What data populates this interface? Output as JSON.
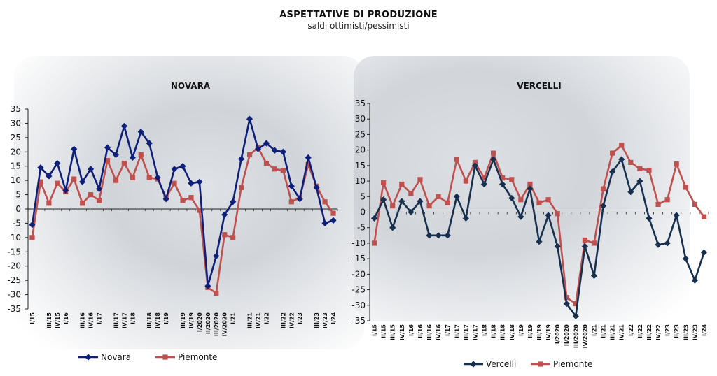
{
  "header": {
    "title": "ASPETTATIVE DI PRODUZIONE",
    "subtitle": "saldi ottimisti/pessimisti"
  },
  "chart_data": [
    {
      "type": "line",
      "title": "NOVARA",
      "ylim": [
        -35,
        35
      ],
      "yticks": [
        35,
        30,
        25,
        20,
        15,
        10,
        5,
        0,
        -5,
        -10,
        -15,
        -20,
        -25,
        -30,
        -35
      ],
      "categories": [
        "I/15",
        "II/15",
        "III/15",
        "IV/15",
        "I/16",
        "II/16",
        "III/16",
        "IV/16",
        "I/17",
        "II/17",
        "III/17",
        "IV/17",
        "I/18",
        "II/18",
        "III/18",
        "IV/18",
        "I/19",
        "II/19",
        "III/19",
        "IV/19",
        "I/2020",
        "II/2020",
        "III/2020",
        "IV/2020",
        "I/21",
        "II/21",
        "III/21",
        "IV/21",
        "I/22",
        "II/22",
        "III/22",
        "IV/22",
        "I/23",
        "II/23",
        "III/23",
        "IV/23",
        "I/24"
      ],
      "x_labels": [
        "I/15",
        "III/15",
        "IV/15",
        "I/16",
        "III/16",
        "IV/16",
        "I/17",
        "III/17",
        "IV/17",
        "I/18",
        "III/18",
        "IV/18",
        "I/19",
        "III/19",
        "IV/19",
        "I/2020",
        "II/2020",
        "III/2020",
        "IV/2020",
        "I/21",
        "III/21",
        "IV/21",
        "I/22",
        "III/22",
        "IV/22",
        "I/23",
        "III/23",
        "IV/23",
        "I/24"
      ],
      "legend_position": "bottom",
      "series": [
        {
          "name": "Novara",
          "color": "#0d1f7a",
          "marker": "diamond",
          "values": [
            -5.5,
            14.5,
            11.5,
            16,
            6.5,
            21,
            9.5,
            14,
            7,
            21.5,
            19,
            29,
            18,
            27,
            23,
            11,
            3.5,
            14,
            15,
            9,
            9.5,
            -27,
            -16.5,
            -2,
            2.5,
            17.5,
            31.5,
            21,
            23,
            20.5,
            20,
            8,
            3.5,
            18,
            7.5,
            -5,
            -4
          ]
        },
        {
          "name": "Piemonte",
          "color": "#c0504d",
          "marker": "square",
          "values": [
            -10,
            9.5,
            2,
            9,
            6,
            10.5,
            2,
            5,
            3,
            17,
            10,
            16,
            11,
            19,
            11,
            10.5,
            4,
            9,
            3,
            4,
            -0.5,
            -27.5,
            -29.5,
            -9,
            -10,
            7.5,
            19,
            21.5,
            16,
            14,
            13.5,
            2.5,
            4,
            15.5,
            8,
            2.5,
            -1.5
          ]
        }
      ]
    },
    {
      "type": "line",
      "title": "VERCELLI",
      "ylim": [
        -35,
        35
      ],
      "yticks": [
        35,
        30,
        25,
        20,
        15,
        10,
        5,
        0,
        -5,
        -10,
        -15,
        -20,
        -25,
        -30,
        -35
      ],
      "categories": [
        "I/15",
        "II/15",
        "III/15",
        "IV/15",
        "I/16",
        "II/16",
        "III/16",
        "IV/16",
        "I/17",
        "II/17",
        "III/17",
        "IV/17",
        "I/18",
        "II/18",
        "III/18",
        "IV/18",
        "I/19",
        "II/19",
        "III/19",
        "IV/19",
        "I/2020",
        "II/2020",
        "III/2020",
        "IV/2020",
        "I/21",
        "II/21",
        "III/21",
        "IV/21",
        "I/22",
        "II/22",
        "III/22",
        "IV/22",
        "I/23",
        "II/23",
        "III/23",
        "IV/23",
        "I/24"
      ],
      "x_labels": [
        "I/15",
        "II/15",
        "III/15",
        "IV/15",
        "I/16",
        "II/16",
        "III/16",
        "IV/16",
        "I/17",
        "II/17",
        "III/17",
        "IV/17",
        "I/18",
        "II/18",
        "III/18",
        "IV/18",
        "I/19",
        "II/19",
        "III/19",
        "IV/19",
        "I/2020",
        "II/2020",
        "III/2020",
        "IV/2020",
        "I/21",
        "II/21",
        "III/21",
        "IV/21",
        "I/22",
        "II/22",
        "III/22",
        "IV/22",
        "I/23",
        "II/23",
        "III/23",
        "IV/23",
        "I/24"
      ],
      "legend_position": "bottom",
      "series": [
        {
          "name": "Vercelli",
          "color": "#17304f",
          "marker": "diamond",
          "values": [
            -2,
            4,
            -5,
            3.5,
            0,
            3.5,
            -7.5,
            -7.5,
            -7.5,
            5,
            -2,
            15,
            9,
            17,
            9,
            4.5,
            -1.5,
            7.5,
            -9.5,
            -1,
            -11,
            -29.5,
            -33.5,
            -11,
            -20.5,
            2,
            13,
            17,
            6.5,
            10,
            -2,
            -10.5,
            -10,
            -1,
            -15,
            -22,
            -13
          ]
        },
        {
          "name": "Piemonte",
          "color": "#c0504d",
          "marker": "square",
          "values": [
            -10,
            9.5,
            2,
            9,
            6,
            10.5,
            2,
            5,
            3,
            17,
            10,
            16,
            11,
            19,
            11,
            10.5,
            4,
            9,
            3,
            4,
            -0.5,
            -27.5,
            -29.5,
            -9,
            -10,
            7.5,
            19,
            21.5,
            16,
            14,
            13.5,
            2.5,
            4,
            15.5,
            8,
            2.5,
            -1.5
          ]
        }
      ]
    }
  ]
}
